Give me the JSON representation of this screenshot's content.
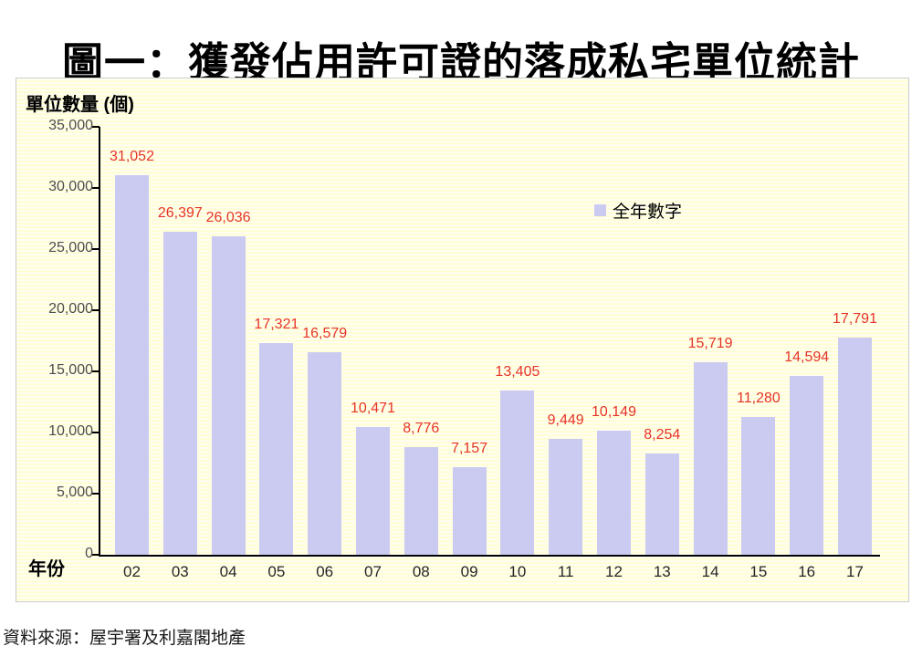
{
  "page": {
    "title": "圖一：獲發佔用許可證的落成私宅單位統計",
    "source": "資料來源：屋宇署及利嘉閣地產"
  },
  "chart_data": {
    "type": "bar",
    "title": "圖一：獲發佔用許可證的落成私宅單位統計",
    "ylabel": "單位數量 (個)",
    "xlabel": "年份",
    "categories": [
      "02",
      "03",
      "04",
      "05",
      "06",
      "07",
      "08",
      "09",
      "10",
      "11",
      "12",
      "13",
      "14",
      "15",
      "16",
      "17"
    ],
    "values": [
      31052,
      26397,
      26036,
      17321,
      16579,
      10471,
      8776,
      7157,
      13405,
      9449,
      10149,
      8254,
      15719,
      11280,
      14594,
      17791
    ],
    "value_labels": [
      "31,052",
      "26,397",
      "26,036",
      "17,321",
      "16,579",
      "10,471",
      "8,776",
      "7,157",
      "13,405",
      "9,449",
      "10,149",
      "8,254",
      "15,719",
      "11,280",
      "14,594",
      "17,791"
    ],
    "legend": [
      {
        "label": "全年數字",
        "color": "#cbcbf1"
      }
    ],
    "legend_position": "inside-right",
    "ylim": [
      0,
      35000
    ],
    "ytick_interval": 5000,
    "ytick_labels": [
      "0",
      "5,000",
      "10,000",
      "15,000",
      "20,000",
      "25,000",
      "30,000",
      "35,000"
    ],
    "grid": false,
    "colors": {
      "bar": "#cbcbf1",
      "value_label": "#e63329",
      "axis": "#000000",
      "y_tick_text": "#4d4d4d",
      "x_tick_text": "#262626"
    }
  }
}
